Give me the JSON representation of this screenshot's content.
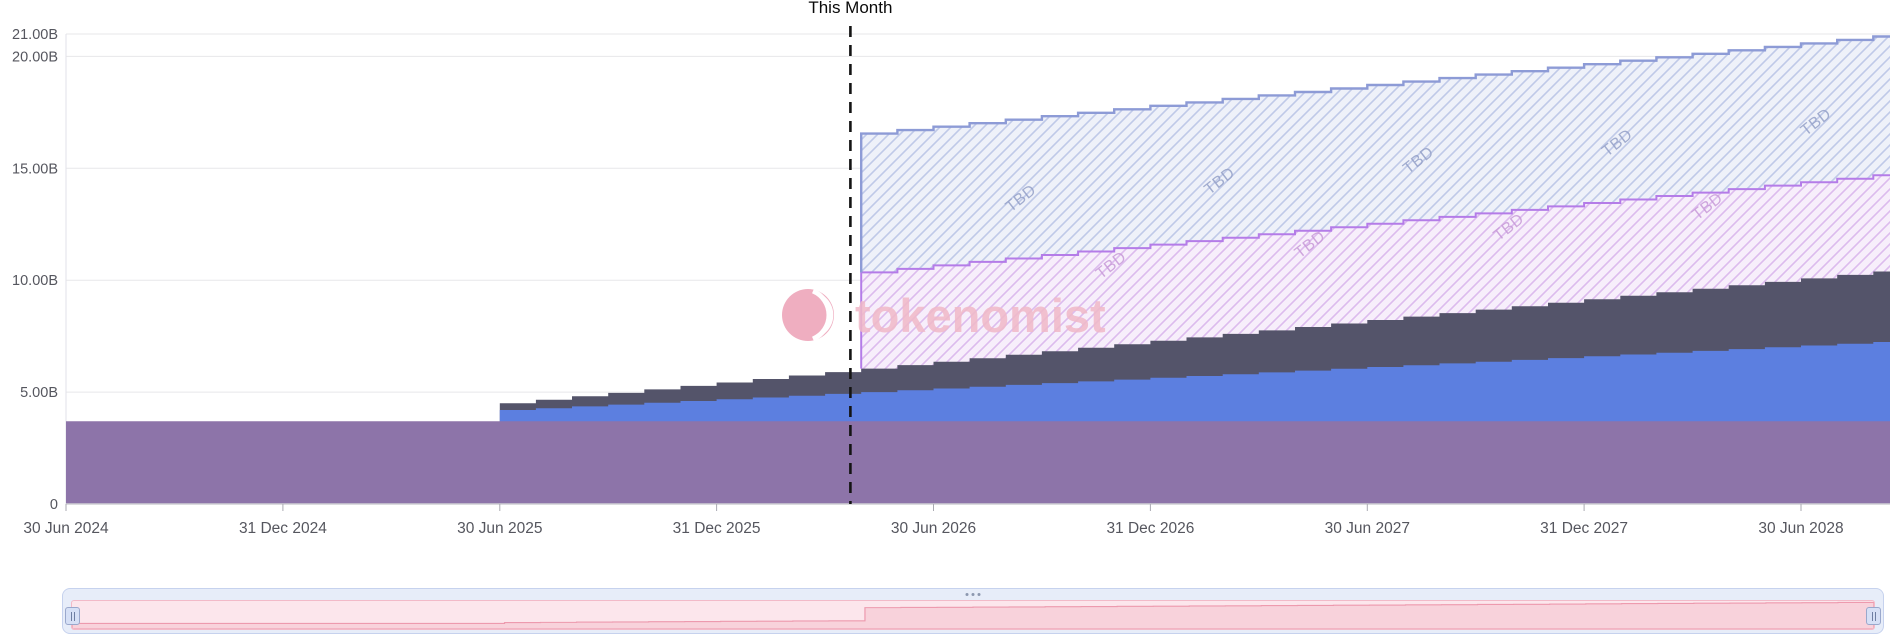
{
  "watermark": {
    "text": "tokenomist"
  },
  "chart_data": {
    "type": "area",
    "subtype": "stacked-step-area-unlock-schedule",
    "title": "",
    "x_axis": {
      "tick_labels": [
        "30 Jun 2024",
        "31 Dec 2024",
        "30 Jun 2025",
        "31 Dec 2025",
        "30 Jun 2026",
        "31 Dec 2026",
        "30 Jun 2027",
        "31 Dec 2027",
        "30 Jun 2028"
      ],
      "tick_months": [
        0,
        6,
        12,
        18,
        24,
        30,
        36,
        42,
        48
      ],
      "months_span": 51,
      "start_date": "30 Jun 2024"
    },
    "y_axis": {
      "tick_labels": [
        "0",
        "5.00B",
        "10.00B",
        "15.00B",
        "20.00B",
        "21.00B"
      ],
      "tick_values": [
        0,
        5,
        10,
        15,
        20,
        21
      ],
      "unit": "B",
      "max": 21.2
    },
    "this_month": {
      "label": "This Month",
      "month_position": 21.7
    },
    "grid": true,
    "legend_position": "none",
    "series": [
      {
        "name": "allocation-purple",
        "style": "solid",
        "color": "#8d74a9",
        "start_month": 0,
        "end_month": 50,
        "constant_value": 3.7
      },
      {
        "name": "allocation-blue",
        "style": "solid",
        "color": "#5c7fe0",
        "start_month": 12,
        "values": [
          0.5,
          0.58,
          0.66,
          0.74,
          0.82,
          0.9,
          0.98,
          1.06,
          1.14,
          1.22,
          1.3,
          1.38,
          1.46,
          1.54,
          1.62,
          1.7,
          1.78,
          1.86,
          1.94,
          2.02,
          2.1,
          2.18,
          2.26,
          2.34,
          2.42,
          2.5,
          2.58,
          2.66,
          2.74,
          2.82,
          2.9,
          2.98,
          3.06,
          3.14,
          3.22,
          3.3,
          3.38,
          3.46,
          3.54
        ]
      },
      {
        "name": "allocation-dark",
        "style": "solid",
        "color": "#54546a",
        "start_month": 12,
        "values": [
          0.3,
          0.375,
          0.45,
          0.525,
          0.6,
          0.675,
          0.75,
          0.825,
          0.9,
          0.975,
          1.05,
          1.125,
          1.2,
          1.275,
          1.35,
          1.425,
          1.5,
          1.575,
          1.65,
          1.725,
          1.8,
          1.875,
          1.95,
          2.025,
          2.1,
          2.175,
          2.25,
          2.325,
          2.4,
          2.475,
          2.55,
          2.625,
          2.7,
          2.775,
          2.85,
          2.925,
          3.0,
          3.075,
          3.15
        ]
      },
      {
        "name": "tbd-purple",
        "style": "hatched",
        "label": "TBD",
        "fill": "#f7eefb",
        "hatch_color": "#dcbbee",
        "line_color": "#b47ce8",
        "text_color": "#c89ad8",
        "start_month": 22,
        "values": [
          4.3,
          4.3,
          4.3,
          4.3,
          4.3,
          4.3,
          4.3,
          4.3,
          4.3,
          4.3,
          4.3,
          4.3,
          4.3,
          4.3,
          4.3,
          4.3,
          4.3,
          4.3,
          4.3,
          4.3,
          4.3,
          4.3,
          4.3,
          4.3,
          4.3,
          4.3,
          4.3,
          4.3,
          4.3
        ]
      },
      {
        "name": "tbd-blue",
        "style": "hatched",
        "label": "TBD",
        "fill": "#eef1f9",
        "hatch_color": "#bfc9e8",
        "line_color": "#8d9bd6",
        "text_color": "#94a0c8",
        "start_month": 22,
        "values": [
          6.2,
          6.2,
          6.2,
          6.2,
          6.2,
          6.2,
          6.2,
          6.2,
          6.2,
          6.2,
          6.2,
          6.2,
          6.2,
          6.2,
          6.2,
          6.2,
          6.2,
          6.2,
          6.2,
          6.2,
          6.2,
          6.2,
          6.2,
          6.2,
          6.2,
          6.2,
          6.2,
          6.2,
          6.2
        ]
      }
    ],
    "tbd_labels": [
      {
        "band": 4,
        "months": [
          26.5,
          32,
          37.5,
          43,
          48.5
        ],
        "frac": 0.38
      },
      {
        "band": 3,
        "months": [
          29,
          34.5,
          40,
          45.5
        ],
        "frac": 0.78
      }
    ],
    "style": {
      "grid_color": "#e7e7ea",
      "axis_line_color": "#cfcfd4",
      "axis_text_color": "#55565e",
      "dashed_line_color": "#141414",
      "tick_color": "#aaaab2"
    }
  },
  "datazoom": {
    "track_color": "#e7edf9",
    "selected_color": "#fce6ec",
    "selected_border": "#f2bac8",
    "shadow_color": "#ec8ca0",
    "range": "full"
  }
}
